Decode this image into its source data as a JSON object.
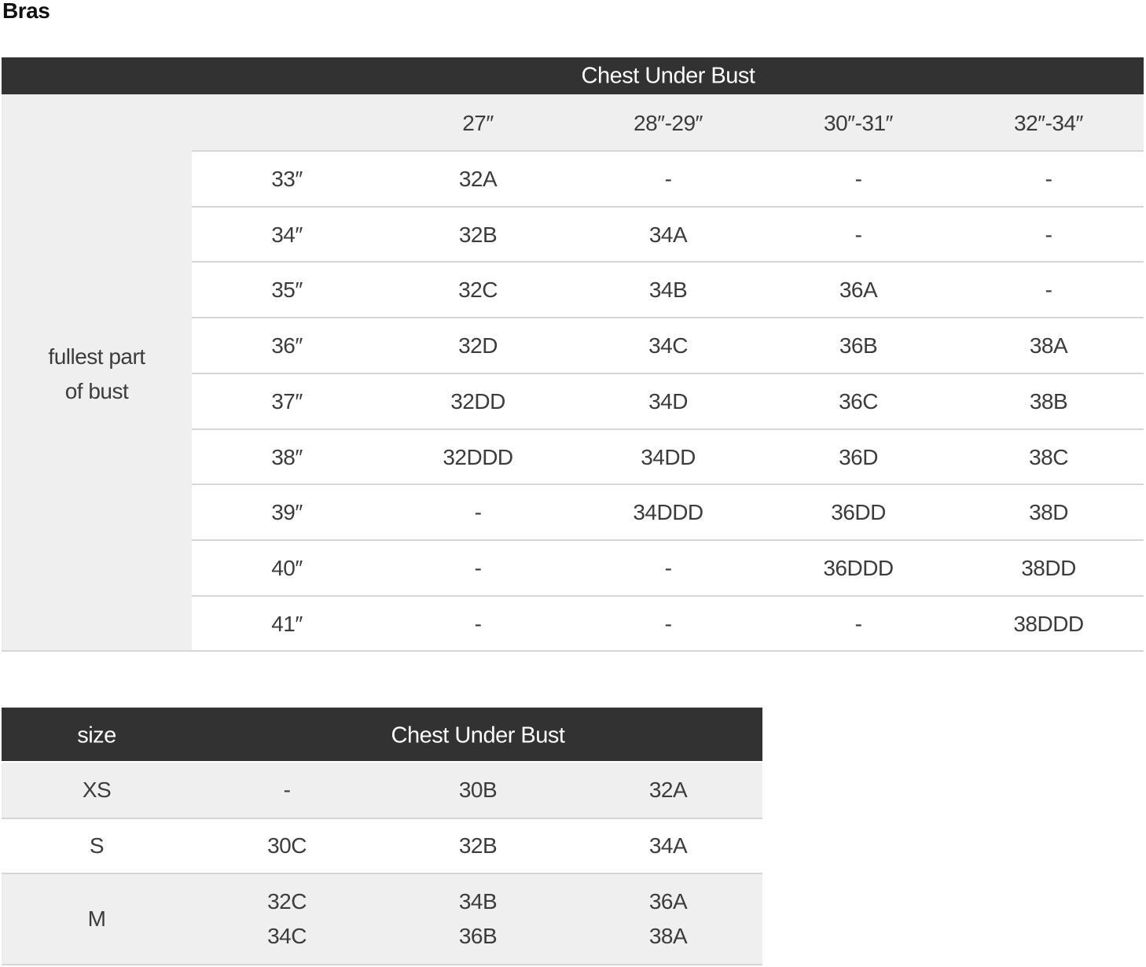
{
  "title": "Bras",
  "table1": {
    "header": "Chest Under Bust",
    "row_label": [
      "fullest part",
      "of bust"
    ],
    "columns": [
      "27″",
      "28″-29″",
      "30″-31″",
      "32″-34″"
    ],
    "rows": [
      {
        "bust": "33″",
        "cells": [
          "32A",
          "-",
          "-",
          "-"
        ]
      },
      {
        "bust": "34″",
        "cells": [
          "32B",
          "34A",
          "-",
          "-"
        ]
      },
      {
        "bust": "35″",
        "cells": [
          "32C",
          "34B",
          "36A",
          "-"
        ]
      },
      {
        "bust": "36″",
        "cells": [
          "32D",
          "34C",
          "36B",
          "38A"
        ]
      },
      {
        "bust": "37″",
        "cells": [
          "32DD",
          "34D",
          "36C",
          "38B"
        ]
      },
      {
        "bust": "38″",
        "cells": [
          "32DDD",
          "34DD",
          "36D",
          "38C"
        ]
      },
      {
        "bust": "39″",
        "cells": [
          "-",
          "34DDD",
          "36DD",
          "38D"
        ]
      },
      {
        "bust": "40″",
        "cells": [
          "-",
          "-",
          "36DDD",
          "38DD"
        ]
      },
      {
        "bust": "41″",
        "cells": [
          "-",
          "-",
          "-",
          "38DDD"
        ]
      }
    ]
  },
  "table2": {
    "size_header": "size",
    "header": "Chest Under Bust",
    "rows": [
      {
        "size": "XS",
        "cells": [
          [
            "-"
          ],
          [
            "30B"
          ],
          [
            "32A"
          ]
        ]
      },
      {
        "size": "S",
        "cells": [
          [
            "30C"
          ],
          [
            "32B"
          ],
          [
            "34A"
          ]
        ]
      },
      {
        "size": "M",
        "cells": [
          [
            "32C",
            "34C"
          ],
          [
            "34B",
            "36B"
          ],
          [
            "36A",
            "38A"
          ]
        ]
      }
    ]
  },
  "colors": {
    "header_bg": "#323232",
    "row_grey": "#efefef",
    "text": "#3c3c3c"
  }
}
